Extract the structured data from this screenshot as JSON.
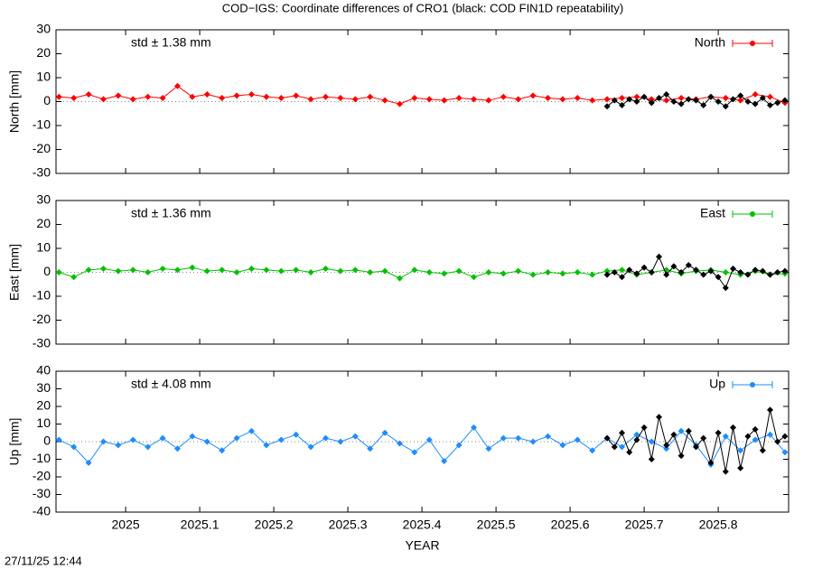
{
  "title": "COD−IGS: Coordinate differences of CRO1 (black: COD FIN1D repeatability)",
  "footer": "27/11/25 12:44",
  "chart_data": [
    {
      "type": "line",
      "ylabel": "North [mm]",
      "annotation": "std ± 1.38 mm",
      "annotation_color": "#ff0000",
      "xlim": [
        2024.906,
        2025.895
      ],
      "xticks": [
        2025,
        2025.1,
        2025.2,
        2025.3,
        2025.4,
        2025.5,
        2025.6,
        2025.7,
        2025.8
      ],
      "ylim": [
        -30,
        30
      ],
      "yticks": [
        -30,
        -20,
        -10,
        0,
        10,
        20,
        30
      ],
      "legend": "top-right",
      "series": [
        {
          "name": "North",
          "color": "#ff0000",
          "x": [
            2024.91,
            2024.93,
            2024.95,
            2024.97,
            2024.99,
            2025.01,
            2025.03,
            2025.05,
            2025.07,
            2025.09,
            2025.11,
            2025.13,
            2025.15,
            2025.17,
            2025.19,
            2025.21,
            2025.23,
            2025.25,
            2025.27,
            2025.29,
            2025.31,
            2025.33,
            2025.35,
            2025.37,
            2025.39,
            2025.41,
            2025.43,
            2025.45,
            2025.47,
            2025.49,
            2025.51,
            2025.53,
            2025.55,
            2025.57,
            2025.59,
            2025.61,
            2025.63,
            2025.65,
            2025.67,
            2025.69,
            2025.71,
            2025.73,
            2025.75,
            2025.77,
            2025.79,
            2025.81,
            2025.83,
            2025.85,
            2025.87,
            2025.89
          ],
          "values": [
            2,
            1.5,
            3,
            1,
            2.5,
            1,
            2,
            1.5,
            6.5,
            2,
            3,
            1.5,
            2.5,
            3,
            2,
            1.5,
            2.5,
            1,
            2,
            1.5,
            1,
            2,
            0.5,
            -1,
            1.5,
            1,
            0.5,
            1.5,
            1,
            0.5,
            2,
            1,
            2.5,
            1.5,
            1,
            1.5,
            0.5,
            1,
            1.5,
            2,
            1,
            0.5,
            1.5,
            1,
            2,
            1.5,
            0.5,
            3,
            2,
            -0.5
          ]
        },
        {
          "color": "#000000",
          "x": [
            2025.65,
            2025.66,
            2025.67,
            2025.68,
            2025.69,
            2025.7,
            2025.71,
            2025.72,
            2025.73,
            2025.74,
            2025.75,
            2025.76,
            2025.77,
            2025.78,
            2025.79,
            2025.8,
            2025.81,
            2025.82,
            2025.83,
            2025.84,
            2025.85,
            2025.86,
            2025.87,
            2025.88,
            2025.89
          ],
          "values": [
            -2,
            0.5,
            -1.5,
            1,
            0,
            2,
            -0.5,
            1.5,
            3,
            0,
            -1,
            1,
            0.5,
            -1.5,
            2,
            0,
            -2,
            1,
            2.5,
            0,
            -1,
            1.5,
            -1.5,
            -0.5,
            0.5
          ]
        }
      ]
    },
    {
      "type": "line",
      "ylabel": "East [mm]",
      "annotation": "std ± 1.36 mm",
      "annotation_color": "#00c000",
      "xlim": [
        2024.906,
        2025.895
      ],
      "xticks": [
        2025,
        2025.1,
        2025.2,
        2025.3,
        2025.4,
        2025.5,
        2025.6,
        2025.7,
        2025.8
      ],
      "ylim": [
        -30,
        30
      ],
      "yticks": [
        -30,
        -20,
        -10,
        0,
        10,
        20,
        30
      ],
      "legend": "top-right",
      "series": [
        {
          "name": "East",
          "color": "#00c000",
          "x": [
            2024.91,
            2024.93,
            2024.95,
            2024.97,
            2024.99,
            2025.01,
            2025.03,
            2025.05,
            2025.07,
            2025.09,
            2025.11,
            2025.13,
            2025.15,
            2025.17,
            2025.19,
            2025.21,
            2025.23,
            2025.25,
            2025.27,
            2025.29,
            2025.31,
            2025.33,
            2025.35,
            2025.37,
            2025.39,
            2025.41,
            2025.43,
            2025.45,
            2025.47,
            2025.49,
            2025.51,
            2025.53,
            2025.55,
            2025.57,
            2025.59,
            2025.61,
            2025.63,
            2025.65,
            2025.67,
            2025.69,
            2025.71,
            2025.73,
            2025.75,
            2025.77,
            2025.79,
            2025.81,
            2025.83,
            2025.85,
            2025.87,
            2025.89
          ],
          "values": [
            0,
            -2,
            1,
            1.5,
            0.5,
            1,
            0,
            1.5,
            1,
            2,
            0.5,
            1,
            0,
            1.5,
            1,
            0.5,
            1,
            0,
            1.5,
            0.5,
            1,
            0,
            0.5,
            -2.5,
            1,
            0,
            -0.5,
            0.5,
            -2,
            0,
            -0.5,
            0.5,
            -1,
            0,
            -0.5,
            0,
            -1,
            0.5,
            1,
            -1,
            0,
            1,
            -0.5,
            0.5,
            1,
            0,
            -1,
            0.5,
            -1,
            -0.5
          ]
        },
        {
          "color": "#000000",
          "x": [
            2025.65,
            2025.66,
            2025.67,
            2025.68,
            2025.69,
            2025.7,
            2025.71,
            2025.72,
            2025.73,
            2025.74,
            2025.75,
            2025.76,
            2025.77,
            2025.78,
            2025.79,
            2025.8,
            2025.81,
            2025.82,
            2025.83,
            2025.84,
            2025.85,
            2025.86,
            2025.87,
            2025.88,
            2025.89
          ],
          "values": [
            -1,
            0,
            -2,
            1,
            -0.5,
            2,
            0,
            6.5,
            -1,
            2.5,
            0,
            3,
            1,
            -1,
            0.5,
            -2,
            -6.5,
            1.5,
            0,
            -1,
            1,
            0.5,
            -1,
            0,
            0.5
          ]
        }
      ]
    },
    {
      "type": "line",
      "ylabel": "Up [mm]",
      "xlabel": "YEAR",
      "annotation": "std ± 4.08 mm",
      "annotation_color": "#1e8cff",
      "xlim": [
        2024.906,
        2025.895
      ],
      "xticks": [
        2025,
        2025.1,
        2025.2,
        2025.3,
        2025.4,
        2025.5,
        2025.6,
        2025.7,
        2025.8
      ],
      "ylim": [
        -40,
        40
      ],
      "yticks": [
        -40,
        -30,
        -20,
        -10,
        0,
        10,
        20,
        30,
        40
      ],
      "legend": "top-right",
      "series": [
        {
          "name": "Up",
          "color": "#1e8cff",
          "x": [
            2024.91,
            2024.93,
            2024.95,
            2024.97,
            2024.99,
            2025.01,
            2025.03,
            2025.05,
            2025.07,
            2025.09,
            2025.11,
            2025.13,
            2025.15,
            2025.17,
            2025.19,
            2025.21,
            2025.23,
            2025.25,
            2025.27,
            2025.29,
            2025.31,
            2025.33,
            2025.35,
            2025.37,
            2025.39,
            2025.41,
            2025.43,
            2025.45,
            2025.47,
            2025.49,
            2025.51,
            2025.53,
            2025.55,
            2025.57,
            2025.59,
            2025.61,
            2025.63,
            2025.65,
            2025.67,
            2025.69,
            2025.71,
            2025.73,
            2025.75,
            2025.77,
            2025.79,
            2025.81,
            2025.83,
            2025.85,
            2025.87,
            2025.89
          ],
          "values": [
            1,
            -3,
            -12,
            0,
            -2,
            1,
            -3,
            2,
            -4,
            3,
            0,
            -5,
            2,
            6,
            -2,
            1,
            4,
            -3,
            2,
            0,
            3,
            -4,
            5,
            -1,
            -6,
            1,
            -11,
            -2,
            8,
            -4,
            2,
            2,
            0,
            3,
            -2,
            1,
            -5,
            2,
            -3,
            4,
            0,
            -4,
            6,
            -2,
            -13,
            3,
            -5,
            1,
            4,
            -6
          ]
        },
        {
          "color": "#000000",
          "x": [
            2025.65,
            2025.66,
            2025.67,
            2025.68,
            2025.69,
            2025.7,
            2025.71,
            2025.72,
            2025.73,
            2025.74,
            2025.75,
            2025.76,
            2025.77,
            2025.78,
            2025.79,
            2025.8,
            2025.81,
            2025.82,
            2025.83,
            2025.84,
            2025.85,
            2025.86,
            2025.87,
            2025.88,
            2025.89
          ],
          "values": [
            2,
            -3,
            5,
            -6,
            1,
            8,
            -10,
            14,
            -2,
            4,
            -8,
            6,
            -3,
            2,
            -12,
            5,
            -17,
            8,
            -15,
            3,
            7,
            -5,
            18,
            0,
            3
          ]
        }
      ]
    }
  ]
}
